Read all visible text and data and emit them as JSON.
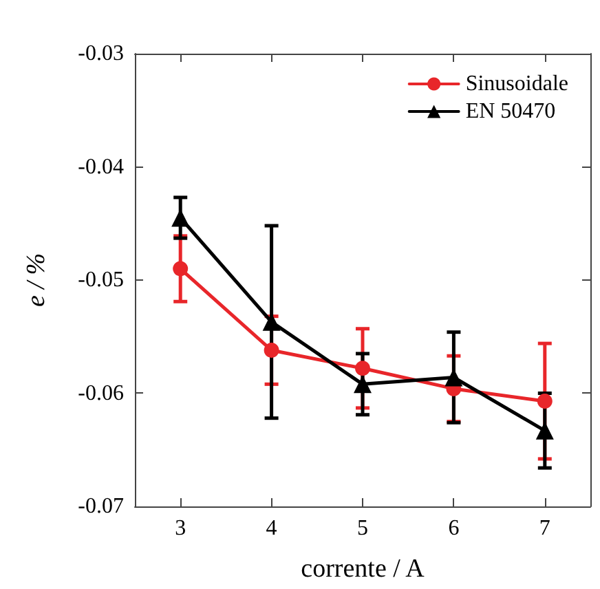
{
  "chart_data": {
    "type": "line",
    "xlabel": "corrente / A",
    "ylabel": "e / %",
    "x": [
      3,
      4,
      5,
      6,
      7
    ],
    "series": [
      {
        "name": "Sinusoidale",
        "color": "#e8262a",
        "values": [
          -0.049,
          -0.0562,
          -0.0578,
          -0.0596,
          -0.0607
        ],
        "errors": [
          0.0029,
          0.003,
          0.0035,
          0.0029,
          0.0051
        ],
        "marker": "circle"
      },
      {
        "name": "EN 50470",
        "color": "#000000",
        "values": [
          -0.0445,
          -0.0537,
          -0.0592,
          -0.0586,
          -0.0633
        ],
        "errors": [
          0.0018,
          0.0085,
          0.0027,
          0.004,
          0.0033
        ],
        "marker": "triangle"
      }
    ],
    "xlim": [
      2.5,
      7.5
    ],
    "xticks": [
      3,
      4,
      5,
      6,
      7
    ],
    "ylim": [
      -0.07,
      -0.03
    ],
    "yticks": [
      -0.07,
      -0.06,
      -0.05,
      -0.04,
      -0.03
    ],
    "grid": false,
    "legend": "top right",
    "line_style": "solid"
  }
}
